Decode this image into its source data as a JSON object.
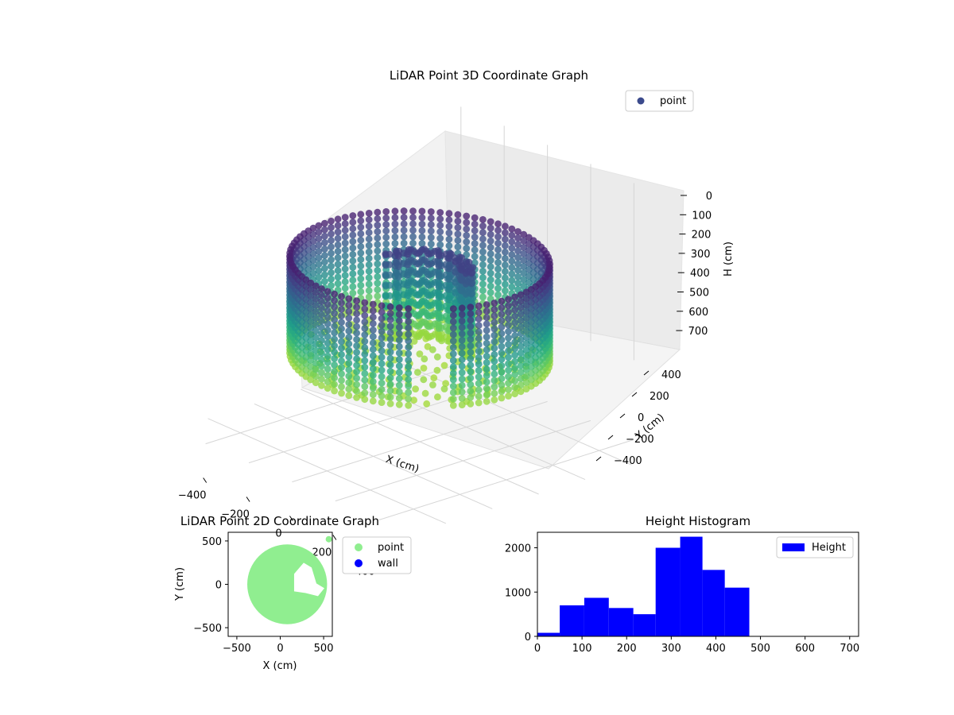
{
  "chart_data": [
    {
      "type": "scatter3d",
      "title": "LiDAR Point 3D Coordinate Graph",
      "xlabel": "X (cm)",
      "ylabel": "Y (cm)",
      "zlabel": "H (cm)",
      "x_ticks": [
        "−400",
        "−200",
        "0",
        "200",
        "400"
      ],
      "y_ticks": [
        "−400",
        "−200",
        "0",
        "200",
        "400"
      ],
      "z_ticks": [
        "0",
        "100",
        "200",
        "300",
        "400",
        "500",
        "600",
        "700"
      ],
      "xlim": [
        -550,
        550
      ],
      "ylim": [
        -550,
        550
      ],
      "zlim": [
        0,
        700
      ],
      "z_inverted": true,
      "colormap": "viridis",
      "legend": {
        "entries": [
          "point"
        ],
        "placement": "top-right"
      },
      "grid": true,
      "description_data": {
        "wall_radius_cm": 410,
        "wall_height_range_cm": [
          50,
          480
        ],
        "interior_structure": "partial inner ring near center"
      }
    },
    {
      "type": "scatter",
      "title": "LiDAR Point 2D Coordinate Graph",
      "xlabel": "X (cm)",
      "ylabel": "Y (cm)",
      "x_ticks": [
        "−500",
        "0",
        "500"
      ],
      "y_ticks": [
        "500",
        "0",
        "−500"
      ],
      "xlim": [
        -600,
        600
      ],
      "ylim": [
        -600,
        600
      ],
      "legend": {
        "entries": [
          {
            "label": "point",
            "color": "#90ee90"
          },
          {
            "label": "wall",
            "color": "#0000ff"
          }
        ],
        "placement": "outside-right"
      },
      "series": [
        {
          "name": "point",
          "color": "#90ee90",
          "shape": "filled disc",
          "center": [
            80,
            0
          ],
          "radius_cm": 460
        },
        {
          "name": "wall",
          "color": "#0000ff",
          "count": 0
        }
      ]
    },
    {
      "type": "bar",
      "title": "Height Histogram",
      "xlabel": "",
      "ylabel": "",
      "x_ticks": [
        "0",
        "100",
        "200",
        "300",
        "400",
        "500",
        "600",
        "700"
      ],
      "y_ticks": [
        "0",
        "1000",
        "2000"
      ],
      "xlim": [
        0,
        720
      ],
      "ylim": [
        0,
        2350
      ],
      "bar_color": "#0000ff",
      "legend": {
        "entries": [
          {
            "label": "Height",
            "color": "#0000ff"
          }
        ],
        "placement": "top-right"
      },
      "bin_edges": [
        0,
        50,
        105,
        160,
        215,
        265,
        320,
        370,
        420,
        475
      ],
      "values": [
        80,
        700,
        870,
        640,
        500,
        2000,
        2250,
        1500,
        1100
      ],
      "series": [
        {
          "name": "Height"
        }
      ]
    }
  ]
}
